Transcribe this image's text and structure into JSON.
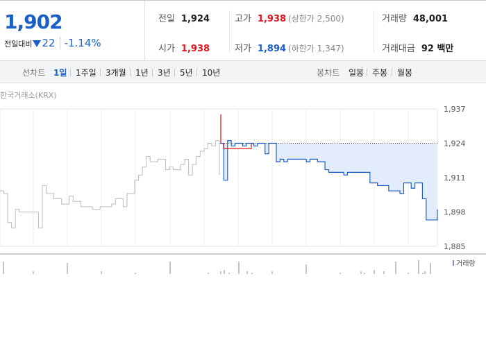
{
  "quote": {
    "price": "1,902",
    "change_label": "전일대비",
    "change_value": "22",
    "change_percent": "-1.14%"
  },
  "stats": {
    "prev_close_label": "전일",
    "prev_close": "1,924",
    "high_label": "고가",
    "high": "1,938",
    "upper_limit": "(상한가 2,500)",
    "volume_label": "거래량",
    "volume": "48,001",
    "open_label": "시가",
    "open": "1,938",
    "low_label": "저가",
    "low": "1,894",
    "lower_limit": "(하한가 1,347)",
    "value_label": "거래대금",
    "value": "92 백만"
  },
  "line_tabs": {
    "label": "선차트",
    "items": [
      "1일",
      "1주일",
      "3개월",
      "1년",
      "3년",
      "5년",
      "10년"
    ],
    "selected": "1일"
  },
  "candle_tabs": {
    "label": "봉차트",
    "items": [
      "일봉",
      "주봉",
      "월봉"
    ]
  },
  "colors": {
    "up": "#e0141e",
    "down": "#1b5fc6",
    "prev": "#bbbbbb",
    "fill": "#e3ecfa"
  },
  "chart_data": {
    "type": "line",
    "title": "한국거래소(KRX)",
    "y_ticks": [
      "1,937",
      "1,924",
      "1,911",
      "1,898",
      "1,885"
    ],
    "ylim": [
      1885,
      1937
    ],
    "reference_value": 1924,
    "volume_legend": "거래량",
    "series": [
      {
        "name": "prev",
        "values": [
          1906,
          1905,
          1894,
          1892,
          1899,
          1898,
          1898,
          1898,
          1898,
          1898,
          1892,
          1908,
          1905,
          1905,
          1903,
          1903,
          1901,
          1901,
          1904,
          1902,
          1902,
          1900,
          1900,
          1900,
          1899,
          1899,
          1900,
          1900,
          1900,
          1901,
          1903,
          1903,
          1900,
          1905,
          1905,
          1910,
          1912,
          1915,
          1919,
          1917,
          1917,
          1918,
          1918,
          1914,
          1915,
          1914,
          1914,
          1916,
          1918,
          1912,
          1916,
          1919,
          1921,
          1922,
          1924,
          1923,
          1925,
          1912
        ]
      },
      {
        "name": "today",
        "values": [
          1924,
          1910,
          1925,
          1923,
          1924,
          1924,
          1923,
          1924,
          1924,
          1923,
          1924,
          1924,
          1920,
          1924,
          1924,
          1917,
          1918,
          1917,
          1918,
          1918,
          1918,
          1918,
          1918,
          1917,
          1918,
          1918,
          1917,
          1917,
          1914,
          1913,
          1913,
          1913,
          1913,
          1912,
          1913,
          1913,
          1913,
          1913,
          1913,
          1913,
          1909,
          1909,
          1908,
          1908,
          1908,
          1906,
          1906,
          1906,
          1905,
          1909,
          1909,
          1907,
          1909,
          1909,
          1903,
          1895,
          1895,
          1895,
          1899
        ]
      },
      {
        "name": "high_spike",
        "values": [
          1935,
          1924,
          1922
        ]
      },
      {
        "name": "volume",
        "values": [
          0.9,
          0.2,
          0.8,
          0.2,
          0.1,
          0.9,
          0.1,
          0.2,
          0.3,
          0.1,
          0.9,
          0.2,
          0.1,
          0.2,
          0.7,
          0.1,
          0.2,
          0.1,
          0.3,
          0.2,
          0.9,
          0.1,
          1.0,
          0.1,
          0.2,
          0.8
        ]
      }
    ]
  }
}
